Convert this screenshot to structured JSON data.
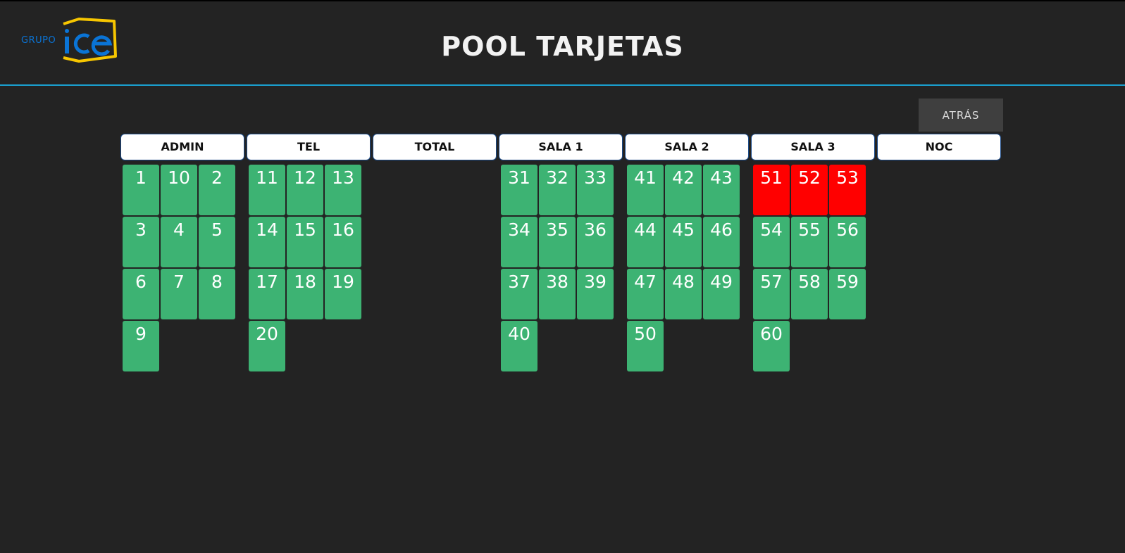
{
  "header": {
    "logo": {
      "text_small": "GRUPO",
      "text_big": "ice",
      "accent_color": "#f7c600",
      "brand_color": "#0a74d6"
    },
    "title": "POOL TARJETAS"
  },
  "toolbar": {
    "back_label": "ATRÁS"
  },
  "colors": {
    "card_available": "#3db373",
    "card_busy": "#ff0000",
    "header_border": "#1b4b8a",
    "divider": "#1aa0cf"
  },
  "groups": [
    {
      "name": "ADMIN",
      "cards": [
        {
          "label": "1",
          "status": "available"
        },
        {
          "label": "10",
          "status": "available"
        },
        {
          "label": "2",
          "status": "available"
        },
        {
          "label": "3",
          "status": "available"
        },
        {
          "label": "4",
          "status": "available"
        },
        {
          "label": "5",
          "status": "available"
        },
        {
          "label": "6",
          "status": "available"
        },
        {
          "label": "7",
          "status": "available"
        },
        {
          "label": "8",
          "status": "available"
        },
        {
          "label": "9",
          "status": "available"
        }
      ]
    },
    {
      "name": "TEL",
      "cards": [
        {
          "label": "11",
          "status": "available"
        },
        {
          "label": "12",
          "status": "available"
        },
        {
          "label": "13",
          "status": "available"
        },
        {
          "label": "14",
          "status": "available"
        },
        {
          "label": "15",
          "status": "available"
        },
        {
          "label": "16",
          "status": "available"
        },
        {
          "label": "17",
          "status": "available"
        },
        {
          "label": "18",
          "status": "available"
        },
        {
          "label": "19",
          "status": "available"
        },
        {
          "label": "20",
          "status": "available"
        }
      ]
    },
    {
      "name": "TOTAL",
      "cards": []
    },
    {
      "name": "SALA 1",
      "cards": [
        {
          "label": "31",
          "status": "available"
        },
        {
          "label": "32",
          "status": "available"
        },
        {
          "label": "33",
          "status": "available"
        },
        {
          "label": "34",
          "status": "available"
        },
        {
          "label": "35",
          "status": "available"
        },
        {
          "label": "36",
          "status": "available"
        },
        {
          "label": "37",
          "status": "available"
        },
        {
          "label": "38",
          "status": "available"
        },
        {
          "label": "39",
          "status": "available"
        },
        {
          "label": "40",
          "status": "available"
        }
      ]
    },
    {
      "name": "SALA 2",
      "cards": [
        {
          "label": "41",
          "status": "available"
        },
        {
          "label": "42",
          "status": "available"
        },
        {
          "label": "43",
          "status": "available"
        },
        {
          "label": "44",
          "status": "available"
        },
        {
          "label": "45",
          "status": "available"
        },
        {
          "label": "46",
          "status": "available"
        },
        {
          "label": "47",
          "status": "available"
        },
        {
          "label": "48",
          "status": "available"
        },
        {
          "label": "49",
          "status": "available"
        },
        {
          "label": "50",
          "status": "available"
        }
      ]
    },
    {
      "name": "SALA 3",
      "cards": [
        {
          "label": "51",
          "status": "busy"
        },
        {
          "label": "52",
          "status": "busy"
        },
        {
          "label": "53",
          "status": "busy"
        },
        {
          "label": "54",
          "status": "available"
        },
        {
          "label": "55",
          "status": "available"
        },
        {
          "label": "56",
          "status": "available"
        },
        {
          "label": "57",
          "status": "available"
        },
        {
          "label": "58",
          "status": "available"
        },
        {
          "label": "59",
          "status": "available"
        },
        {
          "label": "60",
          "status": "available"
        }
      ]
    },
    {
      "name": "NOC",
      "cards": []
    }
  ]
}
